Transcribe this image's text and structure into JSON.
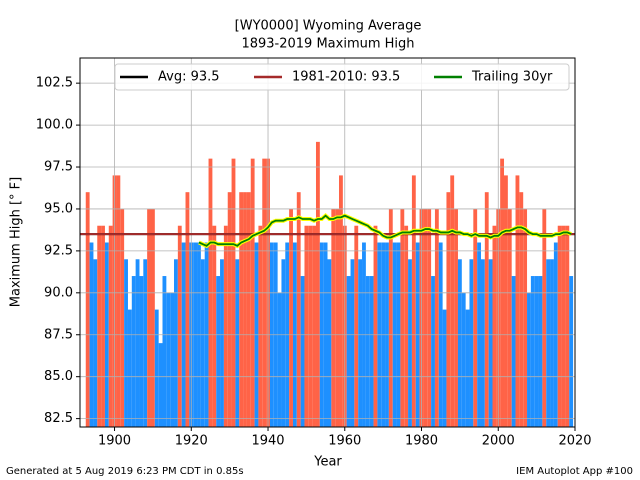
{
  "chart_data": {
    "type": "bar",
    "title": "[WY0000] Wyoming Average",
    "subtitle": "1893-2019 Maximum High",
    "x_label": "Year",
    "y_label": "Maximum High [° F]",
    "footer_left": "Generated at 5 Aug 2019 6:23 PM CDT in 0.85s",
    "footer_right": "IEM Autoplot App #100",
    "x": [
      1893,
      1894,
      1895,
      1896,
      1897,
      1898,
      1899,
      1900,
      1901,
      1902,
      1903,
      1904,
      1905,
      1906,
      1907,
      1908,
      1909,
      1910,
      1911,
      1912,
      1913,
      1914,
      1915,
      1916,
      1917,
      1918,
      1919,
      1920,
      1921,
      1922,
      1923,
      1924,
      1925,
      1926,
      1927,
      1928,
      1929,
      1930,
      1931,
      1932,
      1933,
      1934,
      1935,
      1936,
      1937,
      1938,
      1939,
      1940,
      1941,
      1942,
      1943,
      1944,
      1945,
      1946,
      1947,
      1948,
      1949,
      1950,
      1951,
      1952,
      1953,
      1954,
      1955,
      1956,
      1957,
      1958,
      1959,
      1960,
      1961,
      1962,
      1963,
      1964,
      1965,
      1966,
      1967,
      1968,
      1969,
      1970,
      1971,
      1972,
      1973,
      1974,
      1975,
      1976,
      1977,
      1978,
      1979,
      1980,
      1981,
      1982,
      1983,
      1984,
      1985,
      1986,
      1987,
      1988,
      1989,
      1990,
      1991,
      1992,
      1993,
      1994,
      1995,
      1996,
      1997,
      1998,
      1999,
      2000,
      2001,
      2002,
      2003,
      2004,
      2005,
      2006,
      2007,
      2008,
      2009,
      2010,
      2011,
      2012,
      2013,
      2014,
      2015,
      2016,
      2017,
      2018,
      2019
    ],
    "values": [
      96,
      93,
      92,
      94,
      94,
      93,
      94,
      97,
      97,
      95,
      92,
      89,
      91,
      92,
      91,
      92,
      95,
      95,
      89,
      87,
      91,
      90,
      90,
      92,
      94,
      93,
      96,
      93,
      93,
      93,
      92,
      93,
      98,
      94,
      91,
      92,
      94,
      96,
      98,
      92,
      96,
      96,
      96,
      98,
      93,
      94,
      98,
      98,
      93,
      93,
      90,
      92,
      93,
      95,
      93,
      96,
      91,
      94,
      94,
      94,
      99,
      93,
      93,
      92,
      95,
      95,
      97,
      94,
      91,
      92,
      94,
      92,
      93,
      91,
      91,
      94,
      93,
      93,
      93,
      95,
      93,
      93,
      95,
      94,
      92,
      97,
      93,
      95,
      95,
      95,
      91,
      95,
      93,
      89,
      96,
      97,
      95,
      92,
      90,
      89,
      92,
      95,
      93,
      92,
      96,
      92,
      94,
      95,
      98,
      97,
      95,
      91,
      97,
      96,
      95,
      90,
      91,
      91,
      91,
      95,
      92,
      92,
      93,
      94,
      94,
      94,
      91
    ],
    "colors": {
      "above": "#ff6347",
      "below": "#1e90ff"
    },
    "reference_lines": [
      {
        "name": "Avg: 93.5",
        "value": 93.5,
        "color": "#000000"
      },
      {
        "name": "1981-2010: 93.5",
        "value": 93.5,
        "color": "#a52a2a"
      }
    ],
    "series": [
      {
        "name": "Trailing 30yr",
        "color": "#008000",
        "halo": "#ffff00",
        "values": [
          null,
          null,
          null,
          null,
          null,
          null,
          null,
          null,
          null,
          null,
          null,
          null,
          null,
          null,
          null,
          null,
          null,
          null,
          null,
          null,
          null,
          null,
          null,
          null,
          null,
          null,
          null,
          null,
          null,
          93.0,
          92.9,
          92.8,
          93.0,
          93.0,
          92.9,
          92.9,
          92.9,
          92.9,
          92.9,
          92.8,
          93.0,
          93.1,
          93.2,
          93.4,
          93.5,
          93.6,
          93.7,
          93.9,
          94.2,
          94.3,
          94.3,
          94.3,
          94.4,
          94.4,
          94.4,
          94.5,
          94.4,
          94.4,
          94.4,
          94.3,
          94.4,
          94.4,
          94.6,
          94.4,
          94.4,
          94.5,
          94.5,
          94.6,
          94.5,
          94.4,
          94.3,
          94.2,
          94.1,
          94.0,
          93.8,
          93.7,
          93.6,
          93.4,
          93.3,
          93.3,
          93.4,
          93.5,
          93.6,
          93.6,
          93.6,
          93.7,
          93.7,
          93.7,
          93.8,
          93.8,
          93.7,
          93.7,
          93.6,
          93.6,
          93.6,
          93.7,
          93.6,
          93.6,
          93.5,
          93.5,
          93.4,
          93.5,
          93.4,
          93.4,
          93.4,
          93.3,
          93.4,
          93.4,
          93.6,
          93.7,
          93.7,
          93.8,
          93.9,
          93.9,
          93.8,
          93.6,
          93.5,
          93.5,
          93.4,
          93.4,
          93.4,
          93.4,
          93.5,
          93.5,
          93.6,
          93.6,
          93.5
        ]
      }
    ],
    "xlim": [
      1891,
      2020
    ],
    "xticks": [
      1900,
      1920,
      1940,
      1960,
      1980,
      2000,
      2020
    ],
    "ylim": [
      82,
      104
    ],
    "yticks": [
      82.5,
      {
        "value": 85,
        "label": "85.0"
      },
      87.5,
      {
        "value": 90,
        "label": "90.0"
      },
      92.5,
      {
        "value": 95,
        "label": "95.0"
      },
      97.5,
      {
        "value": 100,
        "label": "100.0"
      },
      102.5
    ],
    "grid": true,
    "legend": "upper center"
  }
}
